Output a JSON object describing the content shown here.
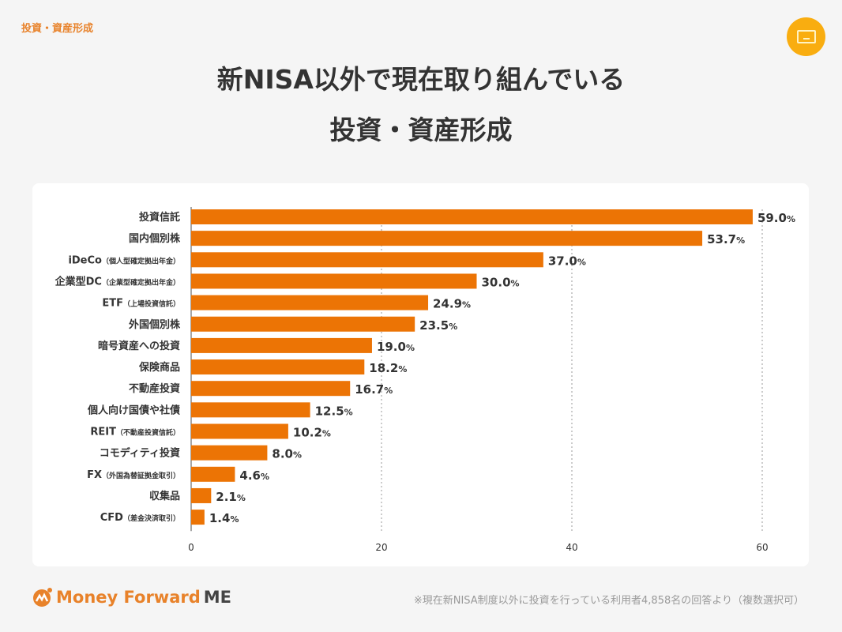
{
  "header": {
    "category": "投資・資産形成",
    "title_line1": "新NISA以外で現在取り組んでいる",
    "title_line2": "投資・資産形成",
    "badge_icon": "screen-icon"
  },
  "chart_data": {
    "type": "bar",
    "orientation": "horizontal",
    "xlim": [
      0,
      60
    ],
    "xticks": [
      0,
      20,
      40,
      60
    ],
    "grid": "dotted-vertical",
    "bar_color": "#ec7405",
    "value_suffix": "%",
    "categories": [
      {
        "label": "投資信託",
        "sub": ""
      },
      {
        "label": "国内個別株",
        "sub": ""
      },
      {
        "label": "iDeCo",
        "sub": "（個人型確定拠出年金）"
      },
      {
        "label": "企業型DC",
        "sub": "（企業型確定拠出年金）"
      },
      {
        "label": "ETF",
        "sub": "（上場投資信託）"
      },
      {
        "label": "外国個別株",
        "sub": ""
      },
      {
        "label": "暗号資産への投資",
        "sub": ""
      },
      {
        "label": "保険商品",
        "sub": ""
      },
      {
        "label": "不動産投資",
        "sub": ""
      },
      {
        "label": "個人向け国債や社債",
        "sub": ""
      },
      {
        "label": "REIT",
        "sub": "（不動産投資信託）"
      },
      {
        "label": "コモディティ投資",
        "sub": ""
      },
      {
        "label": "FX",
        "sub": "（外国為替証拠金取引）"
      },
      {
        "label": "収集品",
        "sub": ""
      },
      {
        "label": "CFD",
        "sub": "（差金決済取引）"
      }
    ],
    "values": [
      59.0,
      53.7,
      37.0,
      30.0,
      24.9,
      23.5,
      19.0,
      18.2,
      16.7,
      12.5,
      10.2,
      8.0,
      4.6,
      2.1,
      1.4
    ]
  },
  "footer": {
    "logo_main": "Money Forward",
    "logo_me": "ME",
    "note": "※現在新NISA制度以外に投資を行っている利用者4,858名の回答より（複数選択可）"
  }
}
